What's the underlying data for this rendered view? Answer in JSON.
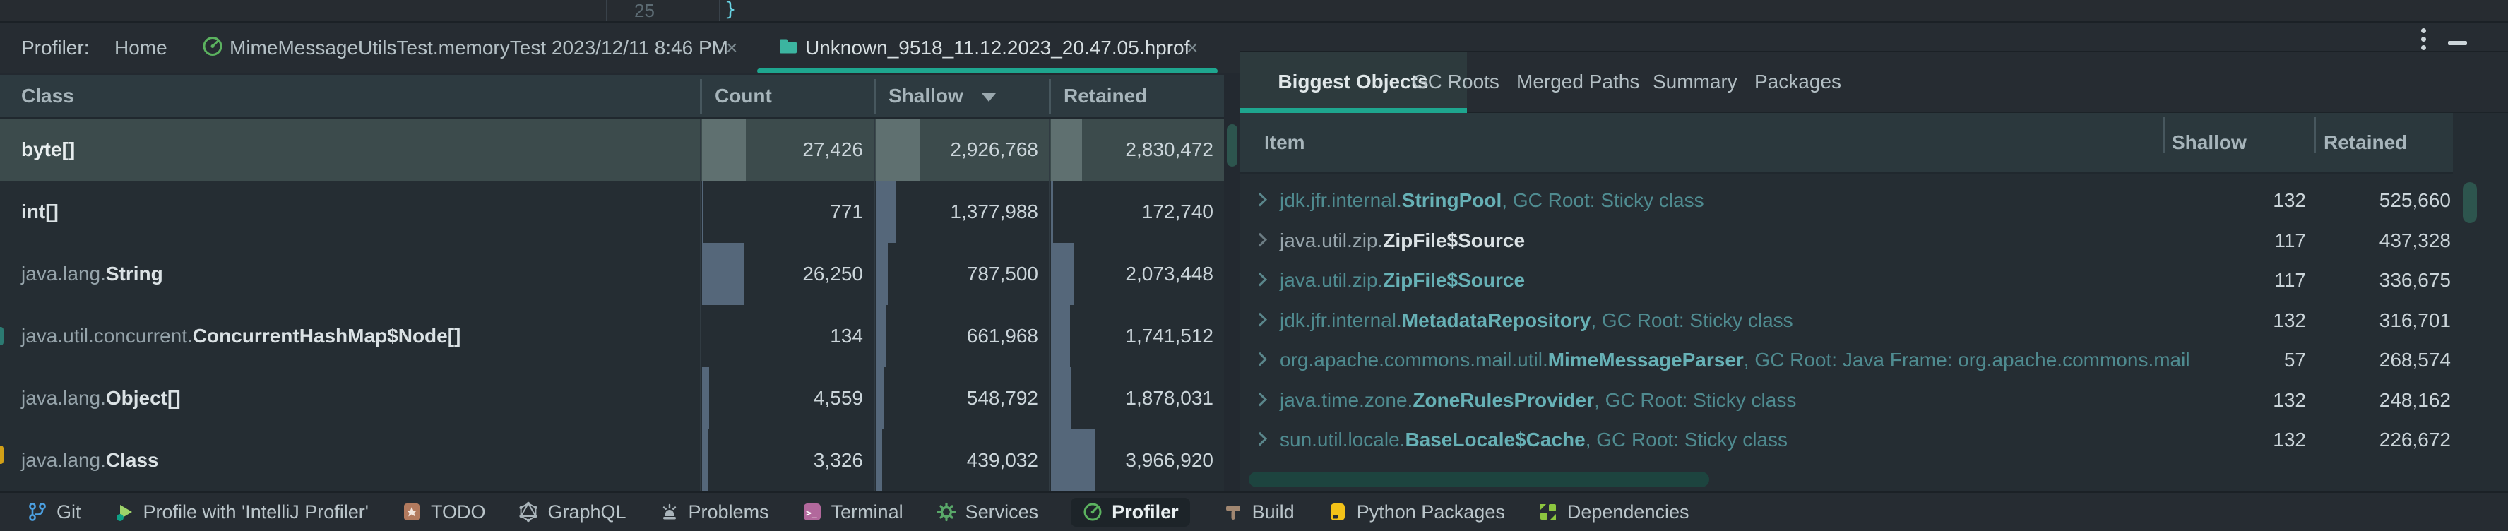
{
  "editor": {
    "line_number": "25",
    "code_fragment": "}"
  },
  "profiler_tabbar": {
    "title": "Profiler:",
    "home_label": "Home",
    "tabs": [
      {
        "label": "MimeMessageUtilsTest.memoryTest 2023/12/11 8:46 PM",
        "icon": "gauge",
        "close": "×",
        "active": false
      },
      {
        "label": "Unknown_9518_11.12.2023_20.47.05.hprof",
        "icon": "folder",
        "close": "×",
        "active": true
      }
    ]
  },
  "window_controls": {
    "more": "⋮",
    "hide": "—"
  },
  "classes_table": {
    "columns": [
      "Class",
      "Count",
      "Shallow",
      "Retained"
    ],
    "sorted_by": "Shallow",
    "sort_direction": "descending",
    "rows": [
      {
        "package": "",
        "name": "byte[]",
        "count": "27,426",
        "shallow": "2,926,768",
        "retained": "2,830,472",
        "selected": true
      },
      {
        "package": "",
        "name": "int[]",
        "count": "771",
        "shallow": "1,377,988",
        "retained": "172,740",
        "selected": false
      },
      {
        "package": "java.lang.",
        "name": "String",
        "count": "26,250",
        "shallow": "787,500",
        "retained": "2,073,448",
        "selected": false
      },
      {
        "package": "java.util.concurrent.",
        "name": "ConcurrentHashMap$Node[]",
        "count": "134",
        "shallow": "661,968",
        "retained": "1,741,512",
        "selected": false
      },
      {
        "package": "java.lang.",
        "name": "Object[]",
        "count": "4,559",
        "shallow": "548,792",
        "retained": "1,878,031",
        "selected": false
      },
      {
        "package": "java.lang.",
        "name": "Class",
        "count": "3,326",
        "shallow": "439,032",
        "retained": "3,966,920",
        "selected": false
      }
    ]
  },
  "objects_panel": {
    "tabs": [
      "Biggest Objects",
      "GC Roots",
      "Merged Paths",
      "Summary",
      "Packages"
    ],
    "active_tab": "Biggest Objects",
    "columns": [
      "Item",
      "Shallow",
      "Retained"
    ],
    "rows": [
      {
        "package": "jdk.jfr.internal.",
        "name": "StringPool",
        "gc_root": ", GC Root: Sticky class",
        "shallow": "132",
        "retained": "525,660",
        "highlighted": true
      },
      {
        "package": "java.util.zip.",
        "name": "ZipFile$Source",
        "gc_root": "",
        "shallow": "117",
        "retained": "437,328",
        "highlighted": false
      },
      {
        "package": "java.util.zip.",
        "name": "ZipFile$Source",
        "gc_root": "",
        "shallow": "117",
        "retained": "336,675",
        "highlighted": true
      },
      {
        "package": "jdk.jfr.internal.",
        "name": "MetadataRepository",
        "gc_root": ", GC Root: Sticky class",
        "shallow": "132",
        "retained": "316,701",
        "highlighted": true
      },
      {
        "package": "org.apache.commons.mail.util.",
        "name": "MimeMessageParser",
        "gc_root": ", GC Root: Java Frame: org.apache.commons.mail",
        "shallow": "57",
        "retained": "268,574",
        "highlighted": true
      },
      {
        "package": "java.time.zone.",
        "name": "ZoneRulesProvider",
        "gc_root": ", GC Root: Sticky class",
        "shallow": "132",
        "retained": "248,162",
        "highlighted": true
      },
      {
        "package": "sun.util.locale.",
        "name": "BaseLocale$Cache",
        "gc_root": ", GC Root: Sticky class",
        "shallow": "132",
        "retained": "226,672",
        "highlighted": true
      }
    ]
  },
  "status_bar": {
    "items": [
      {
        "label": "Git",
        "icon": "git-branch",
        "active": false
      },
      {
        "label": "Profile with 'IntelliJ Profiler'",
        "icon": "run-profile",
        "active": false
      },
      {
        "label": "TODO",
        "icon": "todo",
        "active": false
      },
      {
        "label": "GraphQL",
        "icon": "graphql",
        "active": false
      },
      {
        "label": "Problems",
        "icon": "problems",
        "active": false
      },
      {
        "label": "Terminal",
        "icon": "terminal",
        "active": false
      },
      {
        "label": "Services",
        "icon": "services",
        "active": false
      },
      {
        "label": "Profiler",
        "icon": "profiler",
        "active": true
      },
      {
        "label": "Build",
        "icon": "build",
        "active": false
      },
      {
        "label": "Python Packages",
        "icon": "python-packages",
        "active": false
      },
      {
        "label": "Dependencies",
        "icon": "dependencies",
        "active": false
      }
    ]
  },
  "colors": {
    "accent_teal": "#1EA68F",
    "selected_row_bg": "#3C4B4C",
    "highlight_text_teal": "#67B1B6",
    "histogram_bar": "#55677A"
  }
}
